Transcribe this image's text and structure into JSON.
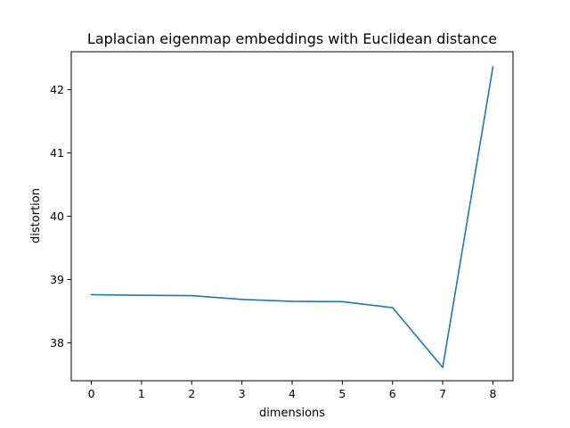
{
  "chart_data": {
    "type": "line",
    "title": "Laplacian eigenmap embeddings with Euclidean distance",
    "xlabel": "dimensions",
    "ylabel": "distortion",
    "x": [
      0,
      1,
      2,
      3,
      4,
      5,
      6,
      7,
      8
    ],
    "series": [
      {
        "values": [
          38.76,
          38.75,
          38.745,
          38.685,
          38.655,
          38.65,
          38.555,
          37.61,
          42.36
        ],
        "color": "#1f77b4"
      }
    ],
    "xticks": [
      "0",
      "1",
      "2",
      "3",
      "4",
      "5",
      "6",
      "7",
      "8"
    ],
    "yticks": [
      "38",
      "39",
      "40",
      "41",
      "42"
    ],
    "xlim": [
      -0.4,
      8.4
    ],
    "ylim": [
      37.4,
      42.6
    ],
    "grid": false,
    "legend": "none"
  }
}
